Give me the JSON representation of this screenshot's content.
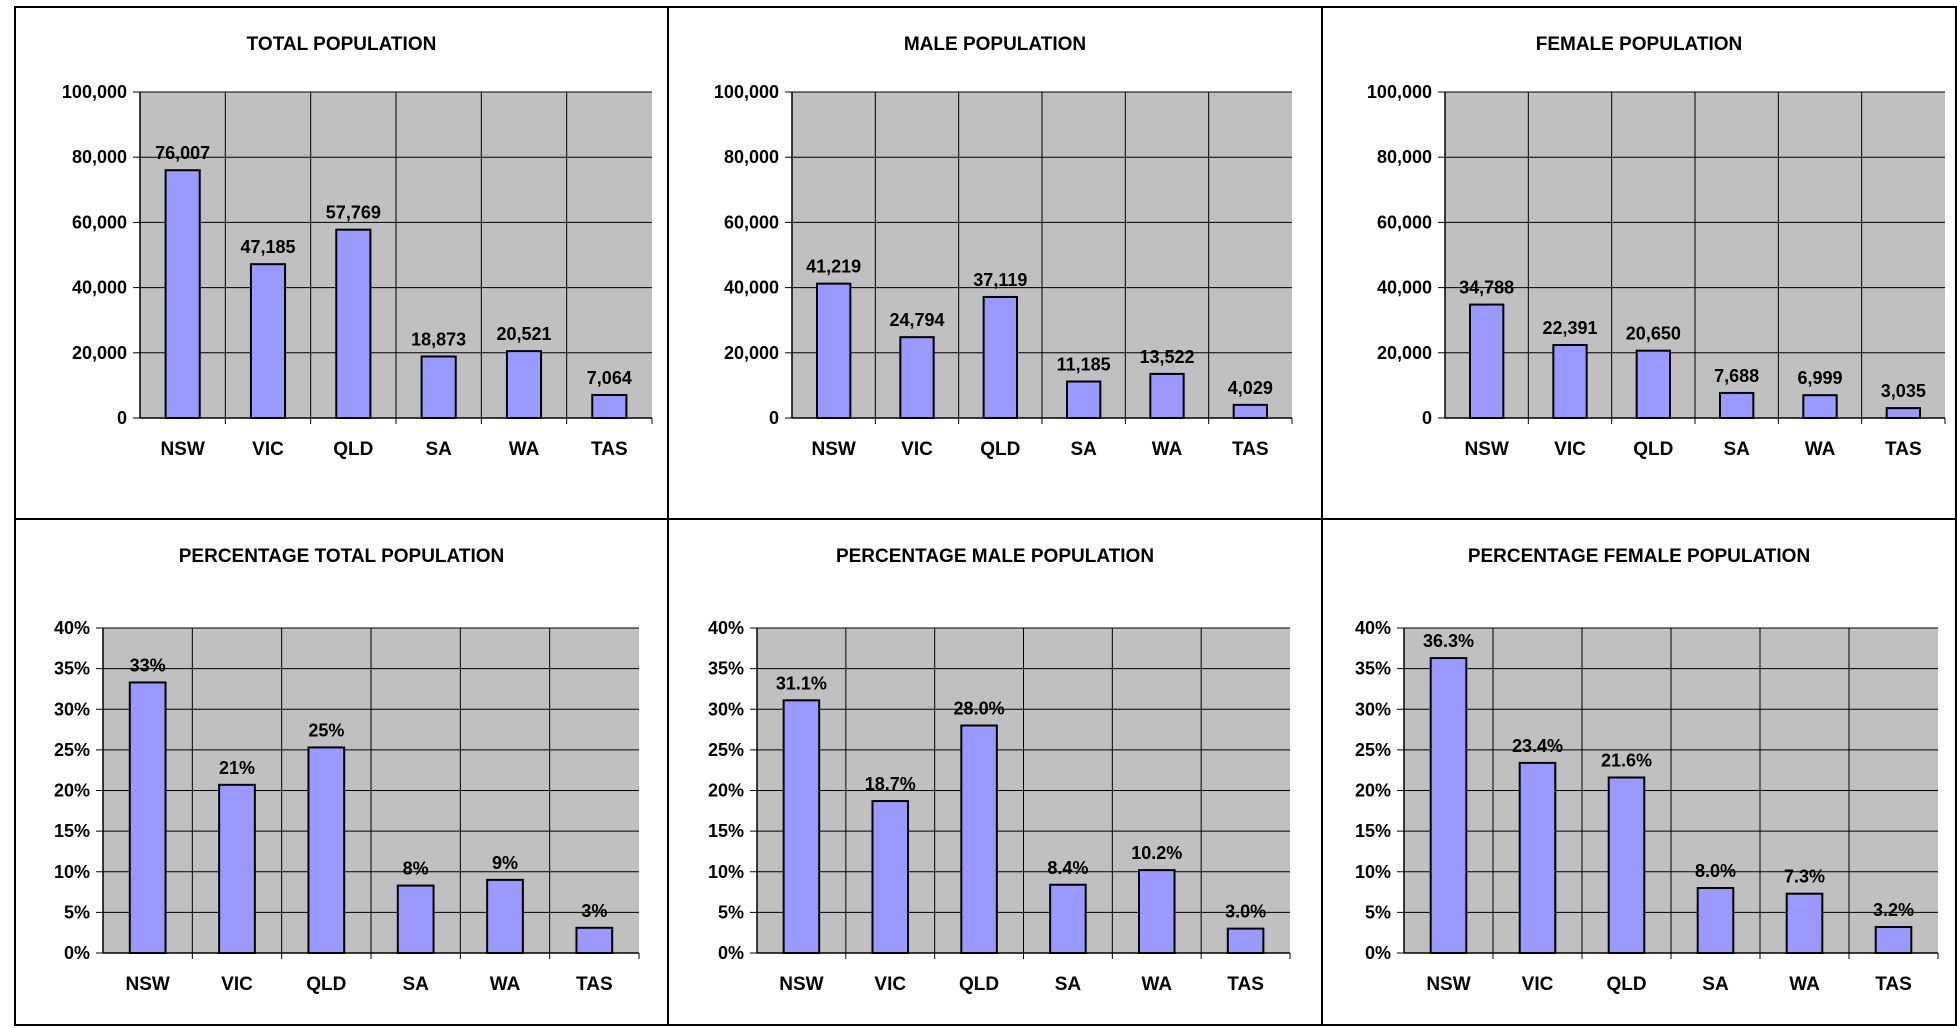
{
  "colors": {
    "plot_bg": "#C0C0C0",
    "bar_fill": "#9999FF",
    "bar_stroke": "#000000",
    "gridline": "#000000"
  },
  "chart_data": [
    {
      "type": "bar",
      "title": "TOTAL POPULATION",
      "categories": [
        "NSW",
        "VIC",
        "QLD",
        "SA",
        "WA",
        "TAS"
      ],
      "values": [
        76007,
        47185,
        57769,
        18873,
        20521,
        7064
      ],
      "value_labels": [
        "76,007",
        "47,185",
        "57,769",
        "18,873",
        "20,521",
        "7,064"
      ],
      "ylim": [
        0,
        100000
      ],
      "yticks": [
        0,
        20000,
        40000,
        60000,
        80000,
        100000
      ],
      "ytick_labels": [
        "0",
        "20,000",
        "40,000",
        "60,000",
        "80,000",
        "100,000"
      ],
      "grid": true,
      "legend": "none"
    },
    {
      "type": "bar",
      "title": "MALE POPULATION",
      "categories": [
        "NSW",
        "VIC",
        "QLD",
        "SA",
        "WA",
        "TAS"
      ],
      "values": [
        41219,
        24794,
        37119,
        11185,
        13522,
        4029
      ],
      "value_labels": [
        "41,219",
        "24,794",
        "37,119",
        "11,185",
        "13,522",
        "4,029"
      ],
      "ylim": [
        0,
        100000
      ],
      "yticks": [
        0,
        20000,
        40000,
        60000,
        80000,
        100000
      ],
      "ytick_labels": [
        "0",
        "20,000",
        "40,000",
        "60,000",
        "80,000",
        "100,000"
      ],
      "grid": true,
      "legend": "none"
    },
    {
      "type": "bar",
      "title": "FEMALE POPULATION",
      "categories": [
        "NSW",
        "VIC",
        "QLD",
        "SA",
        "WA",
        "TAS"
      ],
      "values": [
        34788,
        22391,
        20650,
        7688,
        6999,
        3035
      ],
      "value_labels": [
        "34,788",
        "22,391",
        "20,650",
        "7,688",
        "6,999",
        "3,035"
      ],
      "ylim": [
        0,
        100000
      ],
      "yticks": [
        0,
        20000,
        40000,
        60000,
        80000,
        100000
      ],
      "ytick_labels": [
        "0",
        "20,000",
        "40,000",
        "60,000",
        "80,000",
        "100,000"
      ],
      "grid": true,
      "legend": "none"
    },
    {
      "type": "bar",
      "title": "PERCENTAGE TOTAL POPULATION",
      "categories": [
        "NSW",
        "VIC",
        "QLD",
        "SA",
        "WA",
        "TAS"
      ],
      "values": [
        33.3,
        20.7,
        25.3,
        8.3,
        9.0,
        3.1
      ],
      "value_labels": [
        "33%",
        "21%",
        "25%",
        "8%",
        "9%",
        "3%"
      ],
      "ylim": [
        0,
        40
      ],
      "yticks": [
        0,
        5,
        10,
        15,
        20,
        25,
        30,
        35,
        40
      ],
      "ytick_labels": [
        "0%",
        "5%",
        "10%",
        "15%",
        "20%",
        "25%",
        "30%",
        "35%",
        "40%"
      ],
      "grid": true,
      "legend": "none"
    },
    {
      "type": "bar",
      "title": "PERCENTAGE MALE POPULATION",
      "categories": [
        "NSW",
        "VIC",
        "QLD",
        "SA",
        "WA",
        "TAS"
      ],
      "values": [
        31.1,
        18.7,
        28.0,
        8.4,
        10.2,
        3.0
      ],
      "value_labels": [
        "31.1%",
        "18.7%",
        "28.0%",
        "8.4%",
        "10.2%",
        "3.0%"
      ],
      "ylim": [
        0,
        40
      ],
      "yticks": [
        0,
        5,
        10,
        15,
        20,
        25,
        30,
        35,
        40
      ],
      "ytick_labels": [
        "0%",
        "5%",
        "10%",
        "15%",
        "20%",
        "25%",
        "30%",
        "35%",
        "40%"
      ],
      "grid": true,
      "legend": "none"
    },
    {
      "type": "bar",
      "title": "PERCENTAGE FEMALE POPULATION",
      "categories": [
        "NSW",
        "VIC",
        "QLD",
        "SA",
        "WA",
        "TAS"
      ],
      "values": [
        36.3,
        23.4,
        21.6,
        8.0,
        7.3,
        3.2
      ],
      "value_labels": [
        "36.3%",
        "23.4%",
        "21.6%",
        "8.0%",
        "7.3%",
        "3.2%"
      ],
      "ylim": [
        0,
        40
      ],
      "yticks": [
        0,
        5,
        10,
        15,
        20,
        25,
        30,
        35,
        40
      ],
      "ytick_labels": [
        "0%",
        "5%",
        "10%",
        "15%",
        "20%",
        "25%",
        "30%",
        "35%",
        "40%"
      ],
      "grid": true,
      "legend": "none"
    }
  ]
}
